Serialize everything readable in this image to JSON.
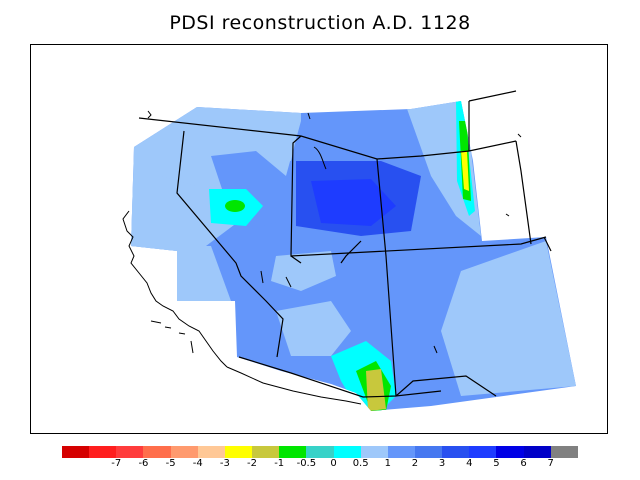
{
  "title": "PDSI reconstruction A.D. 1128",
  "palette": {
    "dark_red": "#d50000",
    "red": "#ff1e1e",
    "red_orange": "#ff3c3c",
    "orange": "#ff6e4b",
    "light_orange": "#ff9a6e",
    "peach": "#ffc896",
    "yellow": "#ffff00",
    "olive": "#c8c83c",
    "green": "#00e600",
    "teal": "#37d2c8",
    "cyan": "#00ffff",
    "light_blue": "#9ec8fa",
    "blue": "#6496fa",
    "medium_blue": "#4678f0",
    "strong_blue": "#2850f0",
    "royal_blue": "#1e3cff",
    "deep_blue": "#0000e6",
    "navy": "#0000c8",
    "gray": "#808080"
  },
  "colorbar": {
    "colors": [
      "#d50000",
      "#ff1e1e",
      "#ff3c3c",
      "#ff6e4b",
      "#ff9a6e",
      "#ffc896",
      "#ffff00",
      "#c8c83c",
      "#00e600",
      "#37d2c8",
      "#00ffff",
      "#9ec8fa",
      "#6496fa",
      "#4678f0",
      "#2850f0",
      "#1e3cff",
      "#0000e6",
      "#0000c8",
      "#808080"
    ],
    "labels": [
      "-7",
      "-6",
      "-5",
      "-4",
      "-3",
      "-2",
      "-1",
      "-0.5",
      "0",
      "0.5",
      "1",
      "2",
      "3",
      "4",
      "5",
      "6",
      "7"
    ]
  }
}
